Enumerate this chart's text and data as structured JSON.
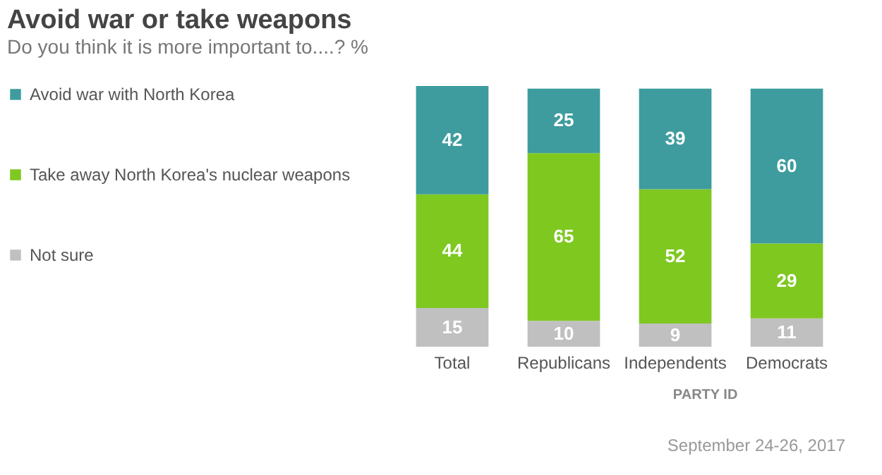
{
  "chart_data": {
    "type": "bar",
    "title": "Avoid war or take weapons",
    "subtitle": "Do you think it is more important to....? %",
    "categories": [
      "Total",
      "Republicans",
      "Independents",
      "Democrats"
    ],
    "stacked": true,
    "data_labels": true,
    "legend": "left",
    "series": [
      {
        "name": "Not sure",
        "color": "#c0c0c0",
        "values": [
          15,
          10,
          9,
          11
        ]
      },
      {
        "name": "Take away North Korea's nuclear weapons",
        "color": "#7ec820",
        "values": [
          44,
          65,
          52,
          29
        ]
      },
      {
        "name": "Avoid war with North Korea",
        "color": "#3e9c9e",
        "values": [
          42,
          25,
          39,
          60
        ]
      }
    ],
    "annotations": [
      "PARTY ID",
      "September 24-26, 2017"
    ]
  }
}
